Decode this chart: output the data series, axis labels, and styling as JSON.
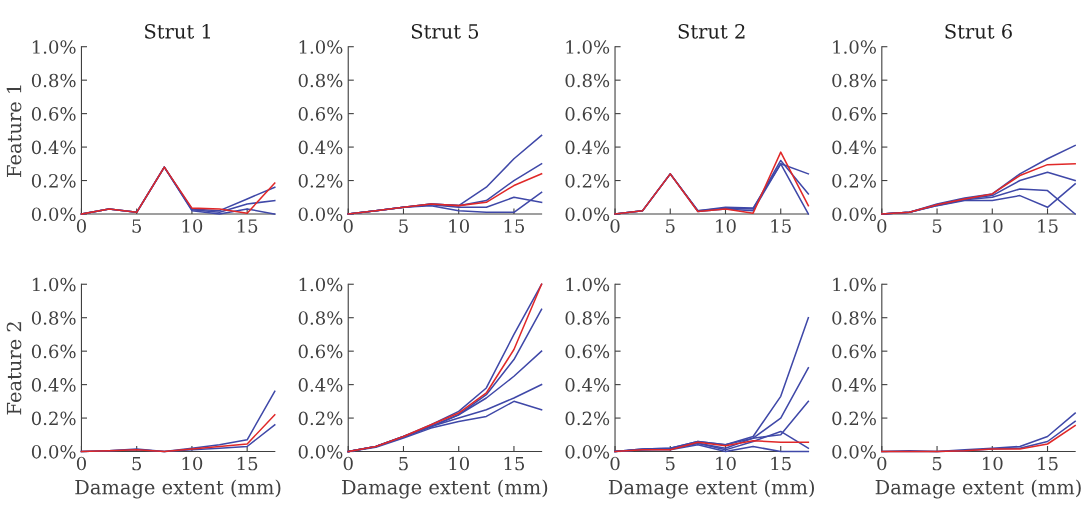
{
  "chart_data": [
    {
      "type": "line",
      "title": "Strut 1",
      "ylabel": "Feature 1",
      "x": [
        0,
        2.5,
        5,
        7.5,
        10,
        12.5,
        15,
        17.5
      ],
      "xlim": [
        0,
        17.5
      ],
      "xticks": [
        0,
        5,
        10,
        15
      ],
      "ylim": [
        0,
        1.0
      ],
      "yticks": [
        {
          "value": 0,
          "label": "0.0%"
        },
        {
          "value": 0.2,
          "label": "0.2%"
        },
        {
          "value": 0.4,
          "label": "0.4%"
        },
        {
          "value": 0.6,
          "label": "0.6%"
        },
        {
          "value": 0.8,
          "label": "0.8%"
        },
        {
          "value": 1.0,
          "label": "1.0%"
        }
      ],
      "series": [
        {
          "color": "#3f48a8",
          "values": [
            0,
            0.03,
            0.01,
            0.28,
            0.03,
            0.02,
            0.09,
            0.16
          ]
        },
        {
          "color": "#3f48a8",
          "values": [
            0,
            0.03,
            0.01,
            0.28,
            0.025,
            0.01,
            0.06,
            0.08
          ]
        },
        {
          "color": "#3f48a8",
          "values": [
            0,
            0.03,
            0.01,
            0.28,
            0.02,
            0.0,
            0.03,
            0.0
          ]
        },
        {
          "color": "#e02828",
          "values": [
            0,
            0.03,
            0.01,
            0.28,
            0.035,
            0.03,
            0.005,
            0.185
          ]
        }
      ]
    },
    {
      "type": "line",
      "title": "Strut 5",
      "x": [
        0,
        2.5,
        5,
        7.5,
        10,
        12.5,
        15,
        17.5
      ],
      "xlim": [
        0,
        17.5
      ],
      "xticks": [
        0,
        5,
        10,
        15
      ],
      "ylim": [
        0,
        1.0
      ],
      "yticks": [
        {
          "value": 0,
          "label": "0.0%"
        },
        {
          "value": 0.2,
          "label": "0.2%"
        },
        {
          "value": 0.4,
          "label": "0.4%"
        },
        {
          "value": 0.6,
          "label": "0.6%"
        },
        {
          "value": 0.8,
          "label": "0.8%"
        },
        {
          "value": 1.0,
          "label": "1.0%"
        }
      ],
      "series": [
        {
          "color": "#3f48a8",
          "values": [
            0,
            0.02,
            0.04,
            0.06,
            0.05,
            0.16,
            0.33,
            0.47
          ]
        },
        {
          "color": "#3f48a8",
          "values": [
            0,
            0.02,
            0.04,
            0.06,
            0.05,
            0.08,
            0.2,
            0.3
          ]
        },
        {
          "color": "#3f48a8",
          "values": [
            0,
            0.02,
            0.04,
            0.055,
            0.04,
            0.04,
            0.1,
            0.07
          ]
        },
        {
          "color": "#3f48a8",
          "values": [
            0,
            0.02,
            0.04,
            0.05,
            0.02,
            0.01,
            0.01,
            0.13
          ]
        },
        {
          "color": "#e02828",
          "values": [
            0,
            0.02,
            0.04,
            0.06,
            0.05,
            0.07,
            0.17,
            0.24
          ]
        }
      ]
    },
    {
      "type": "line",
      "title": "Strut 2",
      "x": [
        0,
        2.5,
        5,
        7.5,
        10,
        12.5,
        15,
        17.5
      ],
      "xlim": [
        0,
        17.5
      ],
      "xticks": [
        0,
        5,
        10,
        15
      ],
      "ylim": [
        0,
        1.0
      ],
      "yticks": [
        {
          "value": 0,
          "label": "0.0%"
        },
        {
          "value": 0.2,
          "label": "0.2%"
        },
        {
          "value": 0.4,
          "label": "0.4%"
        },
        {
          "value": 0.6,
          "label": "0.6%"
        },
        {
          "value": 0.8,
          "label": "0.8%"
        },
        {
          "value": 1.0,
          "label": "1.0%"
        }
      ],
      "series": [
        {
          "color": "#3f48a8",
          "values": [
            0,
            0.02,
            0.24,
            0.02,
            0.04,
            0.035,
            0.3,
            0.24
          ]
        },
        {
          "color": "#3f48a8",
          "values": [
            0,
            0.02,
            0.24,
            0.02,
            0.035,
            0.03,
            0.32,
            0.12
          ]
        },
        {
          "color": "#3f48a8",
          "values": [
            0,
            0.02,
            0.24,
            0.015,
            0.03,
            0.02,
            0.3,
            0.0
          ]
        },
        {
          "color": "#e02828",
          "values": [
            0,
            0.02,
            0.24,
            0.015,
            0.03,
            0.005,
            0.37,
            0.05
          ]
        }
      ]
    },
    {
      "type": "line",
      "title": "Strut 6",
      "x": [
        0,
        2.5,
        5,
        7.5,
        10,
        12.5,
        15,
        17.5
      ],
      "xlim": [
        0,
        17.5
      ],
      "xticks": [
        0,
        5,
        10,
        15
      ],
      "ylim": [
        0,
        1.0
      ],
      "yticks": [
        {
          "value": 0,
          "label": "0.0%"
        },
        {
          "value": 0.2,
          "label": "0.2%"
        },
        {
          "value": 0.4,
          "label": "0.4%"
        },
        {
          "value": 0.6,
          "label": "0.6%"
        },
        {
          "value": 0.8,
          "label": "0.8%"
        },
        {
          "value": 1.0,
          "label": "1.0%"
        }
      ],
      "series": [
        {
          "color": "#3f48a8",
          "values": [
            0,
            0.01,
            0.06,
            0.095,
            0.12,
            0.24,
            0.33,
            0.41
          ]
        },
        {
          "color": "#3f48a8",
          "values": [
            0,
            0.01,
            0.055,
            0.09,
            0.11,
            0.2,
            0.25,
            0.2
          ]
        },
        {
          "color": "#3f48a8",
          "values": [
            0,
            0.01,
            0.05,
            0.085,
            0.1,
            0.15,
            0.14,
            0.0
          ]
        },
        {
          "color": "#3f48a8",
          "values": [
            0,
            0.01,
            0.05,
            0.08,
            0.08,
            0.11,
            0.04,
            0.18
          ]
        },
        {
          "color": "#e02828",
          "values": [
            0,
            0.01,
            0.055,
            0.09,
            0.12,
            0.23,
            0.295,
            0.3
          ]
        }
      ]
    },
    {
      "type": "line",
      "ylabel": "Feature 2",
      "xlabel": "Damage extent (mm)",
      "x": [
        0,
        2.5,
        5,
        7.5,
        10,
        12.5,
        15,
        17.5
      ],
      "xlim": [
        0,
        17.5
      ],
      "xticks": [
        0,
        5,
        10,
        15
      ],
      "ylim": [
        0,
        1.0
      ],
      "yticks": [
        {
          "value": 0,
          "label": "0.0%"
        },
        {
          "value": 0.2,
          "label": "0.2%"
        },
        {
          "value": 0.4,
          "label": "0.4%"
        },
        {
          "value": 0.6,
          "label": "0.6%"
        },
        {
          "value": 0.8,
          "label": "0.8%"
        },
        {
          "value": 1.0,
          "label": "1.0%"
        }
      ],
      "series": [
        {
          "color": "#3f48a8",
          "values": [
            0,
            0.005,
            0.015,
            0.0,
            0.02,
            0.04,
            0.07,
            0.36
          ]
        },
        {
          "color": "#3f48a8",
          "values": [
            0,
            0.005,
            0.01,
            0.0,
            0.01,
            0.02,
            0.03,
            0.16
          ]
        },
        {
          "color": "#e02828",
          "values": [
            0,
            0.005,
            0.01,
            0.0,
            0.015,
            0.03,
            0.045,
            0.22
          ]
        }
      ]
    },
    {
      "type": "line",
      "xlabel": "Damage extent (mm)",
      "x": [
        0,
        2.5,
        5,
        7.5,
        10,
        12.5,
        15,
        17.5
      ],
      "xlim": [
        0,
        17.5
      ],
      "xticks": [
        0,
        5,
        10,
        15
      ],
      "ylim": [
        0,
        1.0
      ],
      "yticks": [
        {
          "value": 0,
          "label": "0.0%"
        },
        {
          "value": 0.2,
          "label": "0.2%"
        },
        {
          "value": 0.4,
          "label": "0.4%"
        },
        {
          "value": 0.6,
          "label": "0.6%"
        },
        {
          "value": 0.8,
          "label": "0.8%"
        },
        {
          "value": 1.0,
          "label": "1.0%"
        }
      ],
      "series": [
        {
          "color": "#3f48a8",
          "values": [
            0,
            0.03,
            0.09,
            0.16,
            0.24,
            0.38,
            0.7,
            1.0
          ]
        },
        {
          "color": "#3f48a8",
          "values": [
            0,
            0.03,
            0.09,
            0.15,
            0.22,
            0.34,
            0.55,
            0.85
          ]
        },
        {
          "color": "#3f48a8",
          "values": [
            0,
            0.03,
            0.09,
            0.15,
            0.22,
            0.32,
            0.45,
            0.6
          ]
        },
        {
          "color": "#3f48a8",
          "values": [
            0,
            0.03,
            0.085,
            0.15,
            0.2,
            0.25,
            0.32,
            0.4
          ]
        },
        {
          "color": "#3f48a8",
          "values": [
            0,
            0.025,
            0.08,
            0.14,
            0.18,
            0.21,
            0.3,
            0.25
          ]
        },
        {
          "color": "#e02828",
          "values": [
            0,
            0.03,
            0.09,
            0.16,
            0.23,
            0.35,
            0.61,
            1.0
          ]
        }
      ]
    },
    {
      "type": "line",
      "xlabel": "Damage extent (mm)",
      "x": [
        0,
        2.5,
        5,
        7.5,
        10,
        12.5,
        15,
        17.5
      ],
      "xlim": [
        0,
        17.5
      ],
      "xticks": [
        0,
        5,
        10,
        15
      ],
      "ylim": [
        0,
        1.0
      ],
      "yticks": [
        {
          "value": 0,
          "label": "0.0%"
        },
        {
          "value": 0.2,
          "label": "0.2%"
        },
        {
          "value": 0.4,
          "label": "0.4%"
        },
        {
          "value": 0.6,
          "label": "0.6%"
        },
        {
          "value": 0.8,
          "label": "0.8%"
        },
        {
          "value": 1.0,
          "label": "1.0%"
        }
      ],
      "series": [
        {
          "color": "#3f48a8",
          "values": [
            0,
            0.015,
            0.02,
            0.06,
            0.04,
            0.09,
            0.33,
            0.8
          ]
        },
        {
          "color": "#3f48a8",
          "values": [
            0,
            0.015,
            0.02,
            0.06,
            0.04,
            0.08,
            0.2,
            0.5
          ]
        },
        {
          "color": "#3f48a8",
          "values": [
            0,
            0.01,
            0.02,
            0.05,
            0.02,
            0.08,
            0.1,
            0.3
          ]
        },
        {
          "color": "#3f48a8",
          "values": [
            0,
            0.01,
            0.015,
            0.05,
            0.01,
            0.06,
            0.12,
            0.02
          ]
        },
        {
          "color": "#3f48a8",
          "values": [
            0,
            0.01,
            0.01,
            0.04,
            0.0,
            0.03,
            0.0,
            0.0
          ]
        },
        {
          "color": "#e02828",
          "values": [
            0,
            0.01,
            0.01,
            0.055,
            0.035,
            0.065,
            0.055,
            0.055
          ]
        }
      ]
    },
    {
      "type": "line",
      "xlabel": "Damage extent (mm)",
      "x": [
        0,
        2.5,
        5,
        7.5,
        10,
        12.5,
        15,
        17.5
      ],
      "xlim": [
        0,
        17.5
      ],
      "xticks": [
        0,
        5,
        10,
        15
      ],
      "ylim": [
        0,
        1.0
      ],
      "yticks": [
        {
          "value": 0,
          "label": "0.0%"
        },
        {
          "value": 0.2,
          "label": "0.2%"
        },
        {
          "value": 0.4,
          "label": "0.4%"
        },
        {
          "value": 0.6,
          "label": "0.6%"
        },
        {
          "value": 0.8,
          "label": "0.8%"
        },
        {
          "value": 1.0,
          "label": "1.0%"
        }
      ],
      "series": [
        {
          "color": "#3f48a8",
          "values": [
            0,
            0.005,
            0.0,
            0.01,
            0.02,
            0.03,
            0.09,
            0.23
          ]
        },
        {
          "color": "#3f48a8",
          "values": [
            0,
            0.0,
            0.0,
            0.005,
            0.015,
            0.02,
            0.06,
            0.18
          ]
        },
        {
          "color": "#e02828",
          "values": [
            0,
            0.0,
            0.0,
            0.005,
            0.015,
            0.015,
            0.045,
            0.155
          ]
        }
      ]
    }
  ]
}
